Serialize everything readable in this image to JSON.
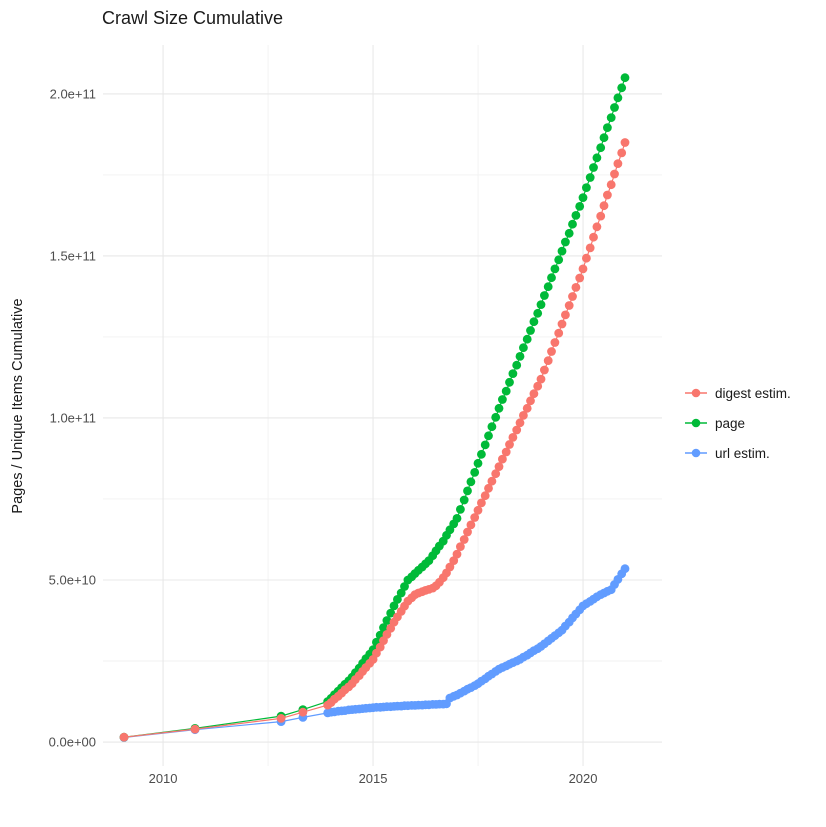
{
  "chart_data": {
    "type": "scatter",
    "title": "Crawl Size Cumulative",
    "xlabel": "",
    "ylabel": "Pages / Unique Items Cumulative",
    "value_unit": "items, stored as billions (1e9)",
    "x_domain": [
      2008.57,
      2021.88
    ],
    "y_domain_e9": [
      -7.4,
      215.1
    ],
    "x_ticks": {
      "values": [
        2010,
        2015,
        2020
      ],
      "labels": [
        "2010",
        "2015",
        "2020"
      ]
    },
    "x_minor": [
      2012.5,
      2017.5,
      2022.5
    ],
    "y_ticks": {
      "values_e9": [
        0,
        50,
        100,
        150,
        200
      ],
      "labels": [
        "0.0e+00",
        "5.0e+10",
        "1.0e+11",
        "1.5e+11",
        "2.0e+11"
      ]
    },
    "y_minor_e9": [
      25,
      75,
      125,
      175
    ],
    "grid": true,
    "background": "#ffffff",
    "gridline_major_color": "#e8e8e8",
    "gridline_minor_color": "#f2f2f2",
    "legend_position": "right",
    "draw_order": [
      2,
      1,
      0
    ],
    "series": [
      {
        "name": "digest estim.",
        "color": "#F8766D",
        "points": [
          [
            2009.07,
            1.5
          ],
          [
            2010.76,
            4.0
          ],
          [
            2012.81,
            7.3
          ],
          [
            2013.33,
            9.2
          ],
          [
            2013.92,
            11.4
          ],
          [
            2014,
            12.2
          ],
          [
            2014.08,
            13.2
          ],
          [
            2014.17,
            14.1
          ],
          [
            2014.25,
            15.1
          ],
          [
            2014.33,
            16.1
          ],
          [
            2014.42,
            17.0
          ],
          [
            2014.5,
            18.0
          ],
          [
            2014.58,
            19.3
          ],
          [
            2014.67,
            20.5
          ],
          [
            2014.75,
            21.8
          ],
          [
            2014.83,
            23.0
          ],
          [
            2014.92,
            24.3
          ],
          [
            2015,
            25.5
          ],
          [
            2015.08,
            27.4
          ],
          [
            2015.17,
            29.3
          ],
          [
            2015.25,
            31.3
          ],
          [
            2015.33,
            33.2
          ],
          [
            2015.42,
            35.1
          ],
          [
            2015.5,
            37.0
          ],
          [
            2015.58,
            38.6
          ],
          [
            2015.67,
            40.3
          ],
          [
            2015.75,
            41.9
          ],
          [
            2015.83,
            43.5
          ],
          [
            2015.92,
            44.5
          ],
          [
            2016,
            45.5
          ],
          [
            2016.08,
            46.0
          ],
          [
            2016.17,
            46.4
          ],
          [
            2016.25,
            46.8
          ],
          [
            2016.33,
            47.1
          ],
          [
            2016.42,
            47.5
          ],
          [
            2016.5,
            48.2
          ],
          [
            2016.58,
            49.3
          ],
          [
            2016.67,
            50.7
          ],
          [
            2016.75,
            52.2
          ],
          [
            2016.83,
            54.0
          ],
          [
            2016.92,
            56.0
          ],
          [
            2017,
            58.0
          ],
          [
            2017.08,
            60.3
          ],
          [
            2017.17,
            62.5
          ],
          [
            2017.25,
            64.8
          ],
          [
            2017.33,
            67.0
          ],
          [
            2017.42,
            69.3
          ],
          [
            2017.5,
            71.5
          ],
          [
            2017.58,
            73.8
          ],
          [
            2017.67,
            76.0
          ],
          [
            2017.75,
            78.3
          ],
          [
            2017.83,
            80.5
          ],
          [
            2017.92,
            82.8
          ],
          [
            2018,
            85.0
          ],
          [
            2018.08,
            87.3
          ],
          [
            2018.17,
            89.5
          ],
          [
            2018.25,
            91.8
          ],
          [
            2018.33,
            94.0
          ],
          [
            2018.42,
            96.3
          ],
          [
            2018.5,
            98.5
          ],
          [
            2018.58,
            100.8
          ],
          [
            2018.67,
            103.0
          ],
          [
            2018.75,
            105.3
          ],
          [
            2018.83,
            107.5
          ],
          [
            2018.92,
            109.8
          ],
          [
            2019,
            112.0
          ],
          [
            2019.08,
            114.8
          ],
          [
            2019.17,
            117.7
          ],
          [
            2019.25,
            120.5
          ],
          [
            2019.33,
            123.3
          ],
          [
            2019.42,
            126.2
          ],
          [
            2019.5,
            129.0
          ],
          [
            2019.58,
            131.8
          ],
          [
            2019.67,
            134.7
          ],
          [
            2019.75,
            137.5
          ],
          [
            2019.83,
            140.3
          ],
          [
            2019.92,
            143.2
          ],
          [
            2020,
            146.0
          ],
          [
            2020.08,
            149.3
          ],
          [
            2020.17,
            152.5
          ],
          [
            2020.25,
            155.8
          ],
          [
            2020.33,
            159.0
          ],
          [
            2020.42,
            162.3
          ],
          [
            2020.5,
            165.5
          ],
          [
            2020.58,
            168.8
          ],
          [
            2020.67,
            172.0
          ],
          [
            2020.75,
            175.3
          ],
          [
            2020.83,
            178.5
          ],
          [
            2020.92,
            181.8
          ],
          [
            2021,
            185.0
          ]
        ]
      },
      {
        "name": "page",
        "color": "#00BA38",
        "points": [
          [
            2009.07,
            1.5
          ],
          [
            2010.76,
            4.2
          ],
          [
            2012.81,
            8.0
          ],
          [
            2013.33,
            10.0
          ],
          [
            2013.92,
            12.5
          ],
          [
            2014,
            13.5
          ],
          [
            2014.08,
            14.6
          ],
          [
            2014.17,
            15.7
          ],
          [
            2014.25,
            16.8
          ],
          [
            2014.33,
            17.8
          ],
          [
            2014.42,
            18.9
          ],
          [
            2014.5,
            20.0
          ],
          [
            2014.58,
            21.4
          ],
          [
            2014.67,
            22.8
          ],
          [
            2014.75,
            24.3
          ],
          [
            2014.83,
            25.7
          ],
          [
            2014.92,
            27.1
          ],
          [
            2015,
            28.5
          ],
          [
            2015.08,
            30.8
          ],
          [
            2015.17,
            33.0
          ],
          [
            2015.25,
            35.3
          ],
          [
            2015.33,
            37.5
          ],
          [
            2015.42,
            39.8
          ],
          [
            2015.5,
            42.0
          ],
          [
            2015.58,
            44.0
          ],
          [
            2015.67,
            46.0
          ],
          [
            2015.75,
            48.0
          ],
          [
            2015.83,
            50.0
          ],
          [
            2015.92,
            51.0
          ],
          [
            2016,
            52.0
          ],
          [
            2016.08,
            53.0
          ],
          [
            2016.17,
            54.0
          ],
          [
            2016.25,
            55.0
          ],
          [
            2016.33,
            56.0
          ],
          [
            2016.42,
            57.5
          ],
          [
            2016.5,
            59.0
          ],
          [
            2016.58,
            60.5
          ],
          [
            2016.67,
            62.0
          ],
          [
            2016.75,
            63.8
          ],
          [
            2016.83,
            65.5
          ],
          [
            2016.92,
            67.3
          ],
          [
            2017,
            69.0
          ],
          [
            2017.08,
            71.8
          ],
          [
            2017.17,
            74.7
          ],
          [
            2017.25,
            77.5
          ],
          [
            2017.33,
            80.3
          ],
          [
            2017.42,
            83.2
          ],
          [
            2017.5,
            86.0
          ],
          [
            2017.58,
            88.8
          ],
          [
            2017.67,
            91.7
          ],
          [
            2017.75,
            94.5
          ],
          [
            2017.83,
            97.3
          ],
          [
            2017.92,
            100.2
          ],
          [
            2018,
            103.0
          ],
          [
            2018.08,
            105.7
          ],
          [
            2018.17,
            108.3
          ],
          [
            2018.25,
            111.0
          ],
          [
            2018.33,
            113.7
          ],
          [
            2018.42,
            116.3
          ],
          [
            2018.5,
            119.0
          ],
          [
            2018.58,
            121.7
          ],
          [
            2018.67,
            124.3
          ],
          [
            2018.75,
            127.0
          ],
          [
            2018.83,
            129.7
          ],
          [
            2018.92,
            132.3
          ],
          [
            2019,
            135.0
          ],
          [
            2019.08,
            137.8
          ],
          [
            2019.17,
            140.5
          ],
          [
            2019.25,
            143.3
          ],
          [
            2019.33,
            146.0
          ],
          [
            2019.42,
            148.8
          ],
          [
            2019.5,
            151.5
          ],
          [
            2019.58,
            154.3
          ],
          [
            2019.67,
            157.0
          ],
          [
            2019.75,
            159.8
          ],
          [
            2019.83,
            162.5
          ],
          [
            2019.92,
            165.3
          ],
          [
            2020,
            168.0
          ],
          [
            2020.08,
            171.1
          ],
          [
            2020.17,
            174.2
          ],
          [
            2020.25,
            177.3
          ],
          [
            2020.33,
            180.3
          ],
          [
            2020.42,
            183.4
          ],
          [
            2020.5,
            186.5
          ],
          [
            2020.58,
            189.6
          ],
          [
            2020.67,
            192.7
          ],
          [
            2020.75,
            195.8
          ],
          [
            2020.83,
            198.8
          ],
          [
            2020.92,
            201.9
          ],
          [
            2021,
            205.0
          ]
        ]
      },
      {
        "name": "url estim.",
        "color": "#619CFF",
        "points": [
          [
            2009.07,
            1.4
          ],
          [
            2010.76,
            3.8
          ],
          [
            2012.81,
            6.3
          ],
          [
            2013.33,
            7.6
          ],
          [
            2013.92,
            9.0
          ],
          [
            2014,
            9.2
          ],
          [
            2014.08,
            9.3
          ],
          [
            2014.17,
            9.5
          ],
          [
            2014.25,
            9.6
          ],
          [
            2014.33,
            9.7
          ],
          [
            2014.42,
            9.9
          ],
          [
            2014.5,
            10.0
          ],
          [
            2014.58,
            10.1
          ],
          [
            2014.67,
            10.2
          ],
          [
            2014.75,
            10.3
          ],
          [
            2014.83,
            10.4
          ],
          [
            2014.92,
            10.5
          ],
          [
            2015,
            10.6
          ],
          [
            2015.08,
            10.7
          ],
          [
            2015.17,
            10.7
          ],
          [
            2015.25,
            10.8
          ],
          [
            2015.33,
            10.9
          ],
          [
            2015.42,
            10.9
          ],
          [
            2015.5,
            11.0
          ],
          [
            2015.58,
            11.1
          ],
          [
            2015.67,
            11.1
          ],
          [
            2015.75,
            11.2
          ],
          [
            2015.83,
            11.2
          ],
          [
            2015.92,
            11.3
          ],
          [
            2016,
            11.3
          ],
          [
            2016.08,
            11.4
          ],
          [
            2016.17,
            11.4
          ],
          [
            2016.25,
            11.5
          ],
          [
            2016.33,
            11.5
          ],
          [
            2016.42,
            11.6
          ],
          [
            2016.5,
            11.6
          ],
          [
            2016.58,
            11.7
          ],
          [
            2016.67,
            11.7
          ],
          [
            2016.75,
            11.8
          ],
          [
            2016.83,
            13.6
          ],
          [
            2016.92,
            14.1
          ],
          [
            2017,
            14.5
          ],
          [
            2017.08,
            15.1
          ],
          [
            2017.17,
            15.7
          ],
          [
            2017.25,
            16.3
          ],
          [
            2017.33,
            16.8
          ],
          [
            2017.42,
            17.4
          ],
          [
            2017.5,
            18.0
          ],
          [
            2017.58,
            18.8
          ],
          [
            2017.67,
            19.5
          ],
          [
            2017.75,
            20.3
          ],
          [
            2017.83,
            21.0
          ],
          [
            2017.92,
            21.8
          ],
          [
            2018,
            22.5
          ],
          [
            2018.08,
            23.0
          ],
          [
            2018.17,
            23.5
          ],
          [
            2018.25,
            24.0
          ],
          [
            2018.33,
            24.5
          ],
          [
            2018.42,
            25.0
          ],
          [
            2018.5,
            25.5
          ],
          [
            2018.58,
            26.2
          ],
          [
            2018.67,
            26.8
          ],
          [
            2018.75,
            27.5
          ],
          [
            2018.83,
            28.2
          ],
          [
            2018.92,
            28.8
          ],
          [
            2019,
            29.5
          ],
          [
            2019.08,
            30.3
          ],
          [
            2019.17,
            31.2
          ],
          [
            2019.25,
            32.0
          ],
          [
            2019.33,
            32.8
          ],
          [
            2019.42,
            33.7
          ],
          [
            2019.5,
            34.5
          ],
          [
            2019.58,
            35.8
          ],
          [
            2019.67,
            37.0
          ],
          [
            2019.75,
            38.3
          ],
          [
            2019.83,
            39.5
          ],
          [
            2019.92,
            40.8
          ],
          [
            2020,
            42.0
          ],
          [
            2020.08,
            42.7
          ],
          [
            2020.17,
            43.4
          ],
          [
            2020.25,
            44.1
          ],
          [
            2020.33,
            44.8
          ],
          [
            2020.42,
            45.5
          ],
          [
            2020.5,
            46.0
          ],
          [
            2020.58,
            46.5
          ],
          [
            2020.67,
            47.0
          ],
          [
            2020.75,
            48.6
          ],
          [
            2020.83,
            50.2
          ],
          [
            2020.92,
            51.9
          ],
          [
            2021,
            53.5
          ]
        ]
      }
    ]
  }
}
